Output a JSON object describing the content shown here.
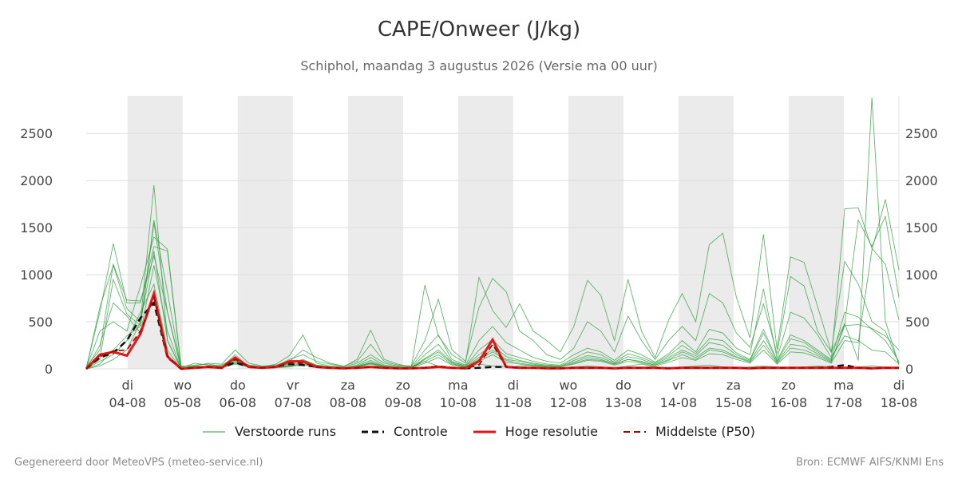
{
  "title": "CAPE/Onweer (J/kg)",
  "subtitle": "Schiphol, maandag  3 augustus 2026 (Versie ma 00 uur)",
  "footer": {
    "left": "Gegenereerd door MeteoVPS (meteo-service.nl)",
    "right": "Bron: ECMWF AIFS/KNMI Ens"
  },
  "colors": {
    "ensemble": "#2e9e3e",
    "control": "#111111",
    "highres": "#e3161a",
    "median": "#b00000",
    "weekend_band": "#ebebeb",
    "grid": "#dddddd"
  },
  "chart_data": {
    "type": "line",
    "ylim": [
      0,
      2900
    ],
    "yticks": [
      0,
      500,
      1000,
      1500,
      2000,
      2500
    ],
    "x_range_days": [
      -0.75,
      14
    ],
    "x_ticks": [
      {
        "day": "di",
        "date": "04-08"
      },
      {
        "day": "wo",
        "date": "05-08"
      },
      {
        "day": "do",
        "date": "06-08"
      },
      {
        "day": "vr",
        "date": "07-08"
      },
      {
        "day": "za",
        "date": "08-08"
      },
      {
        "day": "zo",
        "date": "09-08"
      },
      {
        "day": "ma",
        "date": "10-08"
      },
      {
        "day": "di",
        "date": "11-08"
      },
      {
        "day": "wo",
        "date": "12-08"
      },
      {
        "day": "do",
        "date": "13-08"
      },
      {
        "day": "vr",
        "date": "14-08"
      },
      {
        "day": "za",
        "date": "15-08"
      },
      {
        "day": "zo",
        "date": "16-08"
      },
      {
        "day": "ma",
        "date": "17-08"
      },
      {
        "day": "di",
        "date": "18-08"
      }
    ],
    "shaded_days": [
      "04-08",
      "06-08",
      "08-08",
      "10-08",
      "12-08",
      "14-08",
      "16-08"
    ],
    "legend": [
      "Verstoorde runs",
      "Controle",
      "Hoge resolutie",
      "Middelste (P50)"
    ],
    "series": [
      {
        "name": "Verstoorde runs",
        "style": "thin",
        "values": [
          [
            0,
            30,
            100,
            200,
            500,
            1950,
            300,
            0,
            30,
            20,
            20,
            150,
            20,
            10,
            20,
            60,
            100,
            40,
            20,
            10,
            30,
            60,
            20,
            10,
            20,
            80,
            30,
            10,
            20,
            50,
            30,
            20,
            30,
            40,
            20,
            10,
            20,
            30,
            20,
            10,
            30,
            50,
            20,
            10,
            20,
            30,
            40,
            20,
            10,
            20,
            30,
            20,
            10,
            20,
            30,
            20,
            10,
            20,
            30,
            20,
            10
          ],
          [
            10,
            600,
            1330,
            700,
            700,
            1300,
            1250,
            20,
            40,
            50,
            30,
            90,
            40,
            20,
            50,
            140,
            360,
            60,
            30,
            20,
            100,
            410,
            100,
            50,
            20,
            890,
            350,
            150,
            60,
            970,
            620,
            440,
            690,
            400,
            300,
            180,
            450,
            940,
            780,
            300,
            950,
            400,
            120,
            520,
            800,
            500,
            1320,
            1440,
            760,
            330,
            1430,
            210,
            1190,
            1130,
            660,
            180,
            480,
            90,
            2880,
            510,
            40
          ],
          [
            20,
            200,
            1110,
            730,
            720,
            1200,
            600,
            20,
            30,
            60,
            50,
            200,
            60,
            30,
            40,
            80,
            200,
            120,
            60,
            30,
            80,
            260,
            80,
            40,
            30,
            300,
            740,
            200,
            80,
            650,
            960,
            820,
            400,
            300,
            150,
            100,
            220,
            500,
            400,
            180,
            560,
            300,
            100,
            300,
            450,
            300,
            800,
            700,
            380,
            230,
            690,
            160,
            980,
            880,
            400,
            180,
            1140,
            900,
            500,
            400,
            60
          ],
          [
            5,
            100,
            950,
            580,
            460,
            1580,
            810,
            10,
            60,
            40,
            20,
            110,
            40,
            20,
            30,
            100,
            150,
            80,
            50,
            20,
            60,
            150,
            60,
            30,
            20,
            200,
            360,
            100,
            40,
            300,
            450,
            280,
            200,
            120,
            80,
            60,
            150,
            220,
            180,
            90,
            200,
            150,
            70,
            160,
            300,
            180,
            420,
            380,
            220,
            150,
            850,
            110,
            600,
            540,
            360,
            120,
            350,
            300,
            200,
            180,
            50
          ],
          [
            0,
            400,
            500,
            400,
            880,
            1400,
            1270,
            30,
            20,
            30,
            40,
            120,
            30,
            20,
            30,
            50,
            90,
            40,
            20,
            10,
            40,
            120,
            40,
            20,
            10,
            150,
            260,
            80,
            30,
            200,
            310,
            160,
            120,
            80,
            50,
            40,
            110,
            180,
            150,
            70,
            160,
            120,
            60,
            140,
            250,
            160,
            320,
            300,
            170,
            100,
            420,
            90,
            360,
            300,
            200,
            100,
            600,
            550,
            420,
            300,
            80
          ],
          [
            0,
            250,
            700,
            560,
            380,
            1100,
            400,
            0,
            10,
            20,
            10,
            60,
            20,
            10,
            20,
            30,
            60,
            30,
            10,
            10,
            20,
            70,
            30,
            10,
            10,
            100,
            180,
            60,
            20,
            120,
            200,
            100,
            80,
            50,
            30,
            30,
            70,
            120,
            100,
            50,
            100,
            80,
            40,
            100,
            180,
            120,
            220,
            200,
            130,
            80,
            300,
            70,
            260,
            240,
            160,
            80,
            460,
            470,
            430,
            350,
            200
          ],
          [
            0,
            650,
            1100,
            640,
            500,
            1250,
            300,
            0,
            20,
            30,
            20,
            80,
            30,
            10,
            20,
            40,
            70,
            30,
            20,
            10,
            30,
            90,
            30,
            20,
            10,
            110,
            200,
            70,
            30,
            150,
            250,
            130,
            90,
            60,
            40,
            30,
            90,
            140,
            120,
            60,
            130,
            100,
            50,
            120,
            200,
            140,
            280,
            250,
            150,
            90,
            380,
            80,
            320,
            280,
            180,
            90,
            1700,
            1710,
            1280,
            1110,
            520
          ],
          [
            0,
            80,
            150,
            300,
            600,
            900,
            200,
            0,
            10,
            10,
            10,
            50,
            20,
            10,
            10,
            20,
            40,
            20,
            10,
            10,
            20,
            50,
            20,
            10,
            10,
            60,
            120,
            40,
            20,
            80,
            150,
            70,
            50,
            30,
            20,
            20,
            50,
            90,
            80,
            40,
            80,
            60,
            30,
            70,
            120,
            90,
            160,
            150,
            100,
            60,
            200,
            50,
            180,
            170,
            120,
            60,
            300,
            280,
            1260,
            1800,
            1050
          ],
          [
            0,
            50,
            200,
            350,
            450,
            1550,
            600,
            0,
            20,
            20,
            20,
            70,
            30,
            10,
            20,
            30,
            50,
            30,
            10,
            10,
            20,
            60,
            20,
            10,
            10,
            80,
            150,
            50,
            20,
            100,
            180,
            90,
            60,
            40,
            30,
            20,
            60,
            100,
            90,
            50,
            100,
            70,
            40,
            90,
            150,
            100,
            200,
            180,
            120,
            70,
            250,
            60,
            220,
            200,
            140,
            70,
            480,
            1580,
            1300,
            1620,
            760
          ]
        ]
      },
      {
        "name": "Controle",
        "style": "dash",
        "values": [
          0,
          120,
          170,
          300,
          540,
          700,
          120,
          0,
          10,
          20,
          10,
          70,
          20,
          10,
          20,
          50,
          40,
          20,
          10,
          5,
          10,
          20,
          10,
          5,
          5,
          10,
          20,
          10,
          5,
          10,
          20,
          20,
          10,
          10,
          5,
          5,
          10,
          10,
          10,
          5,
          10,
          10,
          10,
          5,
          10,
          10,
          10,
          10,
          10,
          5,
          10,
          10,
          10,
          10,
          10,
          20,
          40,
          10,
          5,
          10,
          10
        ]
      },
      {
        "name": "Hoge resolutie",
        "style": "thick",
        "values": [
          0,
          150,
          180,
          140,
          370,
          800,
          130,
          0,
          10,
          20,
          10,
          120,
          20,
          10,
          20,
          80,
          80,
          20,
          10,
          5,
          10,
          20,
          10,
          5,
          5,
          10,
          20,
          10,
          5,
          80,
          310,
          20,
          10,
          10,
          5,
          5,
          10,
          10,
          10,
          5,
          10,
          10,
          10,
          5,
          10,
          10,
          10,
          10,
          10,
          5,
          10,
          10,
          10,
          10,
          10,
          10,
          10,
          10,
          5,
          10,
          10
        ]
      },
      {
        "name": "Middelste (P50)",
        "style": "meddash",
        "values": [
          0,
          130,
          190,
          200,
          400,
          760,
          140,
          0,
          10,
          20,
          10,
          100,
          20,
          10,
          20,
          60,
          60,
          20,
          10,
          5,
          10,
          20,
          10,
          5,
          5,
          10,
          30,
          10,
          5,
          40,
          260,
          20,
          10,
          10,
          5,
          5,
          10,
          10,
          10,
          5,
          10,
          10,
          10,
          5,
          10,
          10,
          10,
          10,
          10,
          5,
          10,
          10,
          10,
          10,
          10,
          10,
          10,
          10,
          5,
          10,
          10
        ]
      }
    ]
  }
}
